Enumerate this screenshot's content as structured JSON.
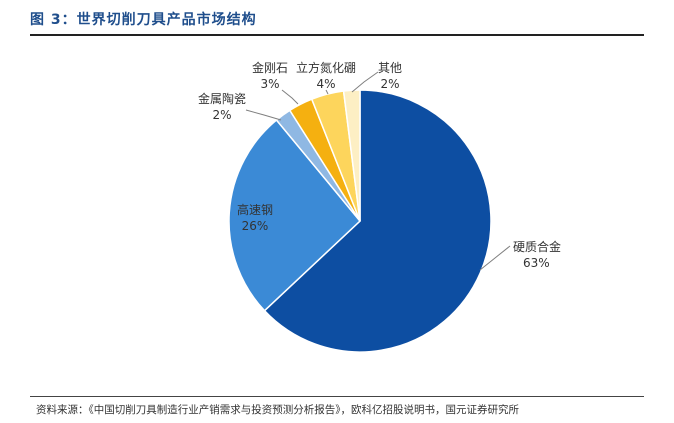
{
  "header": {
    "title": "图 3：世界切削刀具产品市场结构"
  },
  "footer": {
    "source": "资料来源：《中国切削刀具制造行业产销需求与投资预测分析报告》，欧科亿招股说明书，国元证券研究所"
  },
  "chart_data": {
    "type": "pie",
    "title": "",
    "start_angle_deg": 0,
    "direction": "clockwise",
    "legend": "none",
    "slices": [
      {
        "name": "硬质合金",
        "value": 63,
        "label": "63%",
        "color": "#0d4ea2"
      },
      {
        "name": "高速钢",
        "value": 26,
        "label": "26%",
        "color": "#3b8ad6"
      },
      {
        "name": "金属陶瓷",
        "value": 2,
        "label": "2%",
        "color": "#8fb8e3"
      },
      {
        "name": "金刚石",
        "value": 3,
        "label": "3%",
        "color": "#f5b010"
      },
      {
        "name": "立方氮化硼",
        "value": 4,
        "label": "4%",
        "color": "#fdd55c"
      },
      {
        "name": "其他",
        "value": 2,
        "label": "2%",
        "color": "#fdefc4"
      }
    ]
  }
}
